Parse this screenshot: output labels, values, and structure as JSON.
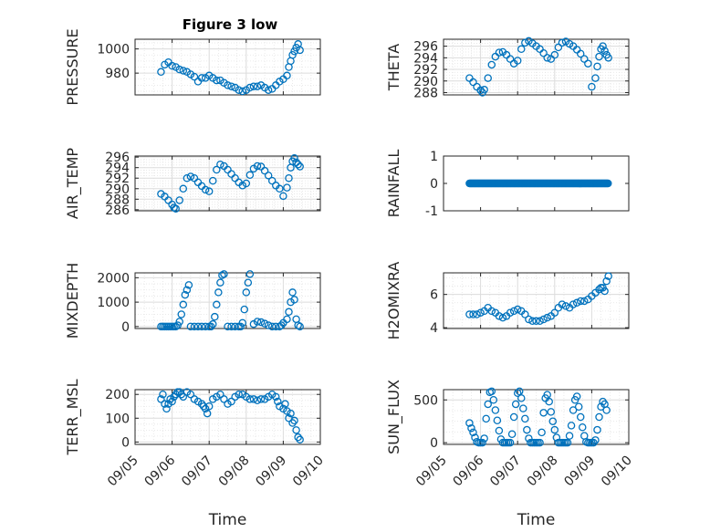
{
  "figure": {
    "title": "Figure 3 low",
    "series_color": "#0072BD"
  },
  "chart_data": [
    {
      "type": "scatter",
      "title": "Figure 3 low",
      "ylabel": "PRESSURE",
      "xlim": [
        "09/05",
        "09/10"
      ],
      "ylim": [
        962,
        1008
      ],
      "yticks": [
        980,
        1000
      ],
      "xticks": [],
      "grid": true,
      "x": [
        5.7,
        5.8,
        5.9,
        6.0,
        6.1,
        6.2,
        6.3,
        6.4,
        6.5,
        6.6,
        6.7,
        6.8,
        6.9,
        7.0,
        7.1,
        7.2,
        7.3,
        7.4,
        7.5,
        7.6,
        7.7,
        7.8,
        7.9,
        8.0,
        8.1,
        8.2,
        8.3,
        8.4,
        8.5,
        8.6,
        8.7,
        8.8,
        8.9,
        9.0,
        9.1,
        9.15,
        9.2,
        9.25,
        9.3,
        9.35,
        9.4,
        9.45
      ],
      "y": [
        981,
        987,
        989,
        986,
        985,
        983,
        982,
        981,
        979,
        977,
        973,
        976,
        976,
        978,
        976,
        974,
        974,
        972,
        970,
        969,
        968,
        966,
        965,
        966,
        968,
        969,
        969,
        970,
        968,
        966,
        967,
        970,
        973,
        975,
        978,
        985,
        990,
        995,
        998,
        1001,
        1004,
        999
      ]
    },
    {
      "type": "scatter",
      "ylabel": "THETA",
      "xlim": [
        "09/05",
        "09/10"
      ],
      "ylim": [
        287.6,
        297.2
      ],
      "yticks": [
        288,
        290,
        292,
        294,
        296
      ],
      "xticks": [],
      "grid": true,
      "x": [
        5.7,
        5.8,
        5.9,
        6.0,
        6.05,
        6.1,
        6.2,
        6.3,
        6.4,
        6.5,
        6.6,
        6.7,
        6.8,
        6.9,
        7.0,
        7.1,
        7.2,
        7.3,
        7.4,
        7.5,
        7.6,
        7.7,
        7.8,
        7.9,
        8.0,
        8.1,
        8.2,
        8.3,
        8.4,
        8.5,
        8.6,
        8.7,
        8.8,
        8.9,
        9.0,
        9.1,
        9.15,
        9.2,
        9.25,
        9.3,
        9.35,
        9.4,
        9.45
      ],
      "y": [
        290.5,
        289.8,
        289.0,
        288.4,
        288.0,
        288.5,
        290.5,
        292.8,
        294.2,
        294.9,
        295.0,
        294.5,
        293.8,
        293.0,
        293.5,
        295.5,
        296.6,
        296.9,
        296.5,
        296.0,
        295.5,
        294.8,
        294.0,
        293.8,
        294.5,
        295.8,
        296.6,
        296.8,
        296.4,
        296.0,
        295.4,
        294.7,
        293.8,
        293.0,
        289.0,
        290.5,
        292.5,
        294.2,
        295.5,
        296.0,
        295.2,
        294.5,
        294.0
      ]
    },
    {
      "type": "scatter",
      "ylabel": "AIR_TEMP",
      "xlim": [
        "09/05",
        "09/10"
      ],
      "ylim": [
        285.8,
        296.2
      ],
      "yticks": [
        286,
        288,
        290,
        292,
        294,
        296
      ],
      "xticks": [],
      "grid": true,
      "x": [
        5.7,
        5.8,
        5.9,
        6.0,
        6.05,
        6.1,
        6.2,
        6.3,
        6.4,
        6.5,
        6.6,
        6.7,
        6.8,
        6.9,
        7.0,
        7.1,
        7.2,
        7.3,
        7.4,
        7.5,
        7.6,
        7.7,
        7.8,
        7.9,
        8.0,
        8.1,
        8.2,
        8.3,
        8.4,
        8.5,
        8.6,
        8.7,
        8.8,
        8.9,
        9.0,
        9.1,
        9.15,
        9.2,
        9.25,
        9.3,
        9.35,
        9.4,
        9.45
      ],
      "y": [
        289.0,
        288.5,
        287.8,
        287.0,
        286.4,
        286.2,
        287.8,
        290.0,
        292.0,
        292.3,
        292.0,
        291.2,
        290.5,
        289.8,
        289.5,
        291.5,
        293.6,
        294.6,
        294.3,
        293.6,
        292.8,
        292.0,
        291.2,
        290.6,
        291.0,
        292.6,
        293.8,
        294.3,
        294.2,
        293.4,
        292.5,
        291.5,
        290.6,
        290.0,
        288.6,
        290.2,
        292.0,
        294.0,
        295.2,
        295.8,
        295.0,
        294.6,
        294.2
      ]
    },
    {
      "type": "scatter",
      "ylabel": "RAINFALL",
      "xlim": [
        "09/05",
        "09/10"
      ],
      "ylim": [
        -1,
        1
      ],
      "yticks": [
        -1,
        0,
        1
      ],
      "xticks": [],
      "grid": false,
      "x_start": 5.7,
      "x_end": 9.45,
      "x_step": 0.02,
      "constant_y": 0
    },
    {
      "type": "scatter",
      "ylabel": "MIXDEPTH",
      "xlim": [
        "09/05",
        "09/10"
      ],
      "ylim": [
        -80,
        2200
      ],
      "yticks": [
        0,
        1000,
        2000
      ],
      "xticks": [],
      "grid": true,
      "x": [
        5.7,
        5.75,
        5.8,
        5.85,
        5.9,
        5.95,
        6.0,
        6.05,
        6.1,
        6.15,
        6.2,
        6.25,
        6.3,
        6.35,
        6.4,
        6.45,
        6.5,
        6.6,
        6.7,
        6.8,
        6.9,
        7.0,
        7.05,
        7.1,
        7.15,
        7.2,
        7.25,
        7.3,
        7.35,
        7.4,
        7.5,
        7.6,
        7.7,
        7.8,
        7.85,
        7.9,
        7.95,
        8.0,
        8.05,
        8.1,
        8.2,
        8.3,
        8.4,
        8.5,
        8.6,
        8.7,
        8.8,
        8.9,
        8.95,
        9.0,
        9.1,
        9.15,
        9.2,
        9.25,
        9.3,
        9.35,
        9.4,
        9.45
      ],
      "y": [
        0,
        0,
        0,
        0,
        0,
        0,
        0,
        0,
        0,
        50,
        200,
        500,
        900,
        1300,
        1500,
        1700,
        0,
        0,
        0,
        0,
        0,
        0,
        0,
        100,
        400,
        900,
        1400,
        1800,
        2100,
        2150,
        0,
        0,
        0,
        0,
        0,
        150,
        700,
        1400,
        1800,
        2150,
        100,
        200,
        180,
        120,
        50,
        0,
        0,
        0,
        50,
        150,
        300,
        600,
        1000,
        1400,
        1100,
        300,
        50,
        0
      ]
    },
    {
      "type": "scatter",
      "ylabel": "H2OMIXRA",
      "xlim": [
        "09/05",
        "09/10"
      ],
      "ylim": [
        3.95,
        7.3
      ],
      "yticks": [
        4,
        6
      ],
      "xticks": [],
      "grid": true,
      "x": [
        5.7,
        5.8,
        5.9,
        6.0,
        6.1,
        6.2,
        6.3,
        6.4,
        6.5,
        6.6,
        6.7,
        6.8,
        6.9,
        7.0,
        7.1,
        7.2,
        7.3,
        7.4,
        7.5,
        7.6,
        7.7,
        7.8,
        7.9,
        8.0,
        8.1,
        8.2,
        8.3,
        8.4,
        8.5,
        8.6,
        8.7,
        8.8,
        8.9,
        9.0,
        9.1,
        9.2,
        9.25,
        9.3,
        9.35,
        9.4,
        9.45
      ],
      "y": [
        4.8,
        4.8,
        4.8,
        4.9,
        5.0,
        5.2,
        5.0,
        4.9,
        4.7,
        4.6,
        4.7,
        4.9,
        5.0,
        5.1,
        5.0,
        4.8,
        4.5,
        4.4,
        4.4,
        4.4,
        4.5,
        4.6,
        4.7,
        4.9,
        5.2,
        5.4,
        5.3,
        5.2,
        5.4,
        5.5,
        5.6,
        5.6,
        5.7,
        5.9,
        6.1,
        6.3,
        6.4,
        6.4,
        6.2,
        6.8,
        7.1
      ]
    },
    {
      "type": "scatter",
      "ylabel": "TERR_MSL",
      "xlim": [
        "09/05",
        "09/10"
      ],
      "ylim": [
        -10,
        220
      ],
      "yticks": [
        0,
        100,
        200
      ],
      "xticks": [
        "09/05",
        "09/06",
        "09/07",
        "09/08",
        "09/09",
        "09/10"
      ],
      "xlabel": "Time",
      "grid": true,
      "x": [
        5.7,
        5.75,
        5.8,
        5.85,
        5.9,
        5.95,
        6.0,
        6.05,
        6.1,
        6.15,
        6.2,
        6.25,
        6.3,
        6.4,
        6.5,
        6.6,
        6.7,
        6.8,
        6.85,
        6.9,
        6.95,
        7.0,
        7.1,
        7.2,
        7.3,
        7.4,
        7.5,
        7.6,
        7.7,
        7.8,
        7.9,
        8.0,
        8.1,
        8.2,
        8.3,
        8.4,
        8.5,
        8.6,
        8.7,
        8.8,
        8.85,
        8.9,
        9.0,
        9.05,
        9.1,
        9.15,
        9.2,
        9.25,
        9.3,
        9.35,
        9.4,
        9.45
      ],
      "y": [
        180,
        200,
        160,
        140,
        160,
        180,
        170,
        190,
        200,
        210,
        210,
        200,
        190,
        210,
        200,
        180,
        170,
        160,
        150,
        140,
        120,
        150,
        180,
        190,
        200,
        180,
        160,
        170,
        190,
        200,
        200,
        190,
        180,
        180,
        175,
        180,
        180,
        190,
        200,
        190,
        170,
        150,
        140,
        160,
        130,
        100,
        120,
        80,
        90,
        50,
        20,
        10
      ]
    },
    {
      "type": "scatter",
      "ylabel": "SUN_FLUX",
      "xlim": [
        "09/05",
        "09/10"
      ],
      "ylim": [
        -20,
        620
      ],
      "yticks": [
        0,
        500
      ],
      "xticks": [
        "09/05",
        "09/06",
        "09/07",
        "09/08",
        "09/09",
        "09/10"
      ],
      "xlabel": "Time",
      "grid": true,
      "x": [
        5.7,
        5.75,
        5.8,
        5.85,
        5.9,
        5.95,
        6.0,
        6.05,
        6.1,
        6.15,
        6.2,
        6.25,
        6.3,
        6.35,
        6.4,
        6.45,
        6.5,
        6.55,
        6.6,
        6.65,
        6.7,
        6.75,
        6.8,
        6.85,
        6.9,
        6.95,
        7.0,
        7.05,
        7.1,
        7.15,
        7.2,
        7.25,
        7.3,
        7.35,
        7.4,
        7.45,
        7.5,
        7.55,
        7.6,
        7.65,
        7.7,
        7.75,
        7.8,
        7.85,
        7.9,
        7.95,
        8.0,
        8.05,
        8.1,
        8.15,
        8.2,
        8.25,
        8.3,
        8.35,
        8.4,
        8.45,
        8.5,
        8.55,
        8.6,
        8.65,
        8.7,
        8.75,
        8.8,
        8.85,
        8.9,
        8.95,
        9.0,
        9.05,
        9.1,
        9.15,
        9.2,
        9.25,
        9.3,
        9.35,
        9.4
      ],
      "y": [
        230,
        170,
        120,
        60,
        10,
        0,
        0,
        0,
        50,
        280,
        450,
        590,
        600,
        500,
        380,
        260,
        140,
        40,
        0,
        0,
        0,
        0,
        0,
        100,
        300,
        450,
        580,
        600,
        520,
        400,
        280,
        150,
        50,
        0,
        0,
        0,
        0,
        0,
        0,
        120,
        350,
        520,
        560,
        480,
        360,
        250,
        150,
        60,
        0,
        0,
        0,
        0,
        0,
        0,
        80,
        200,
        380,
        500,
        540,
        420,
        300,
        180,
        80,
        10,
        0,
        0,
        0,
        0,
        30,
        150,
        300,
        420,
        480,
        450,
        380
      ]
    }
  ]
}
